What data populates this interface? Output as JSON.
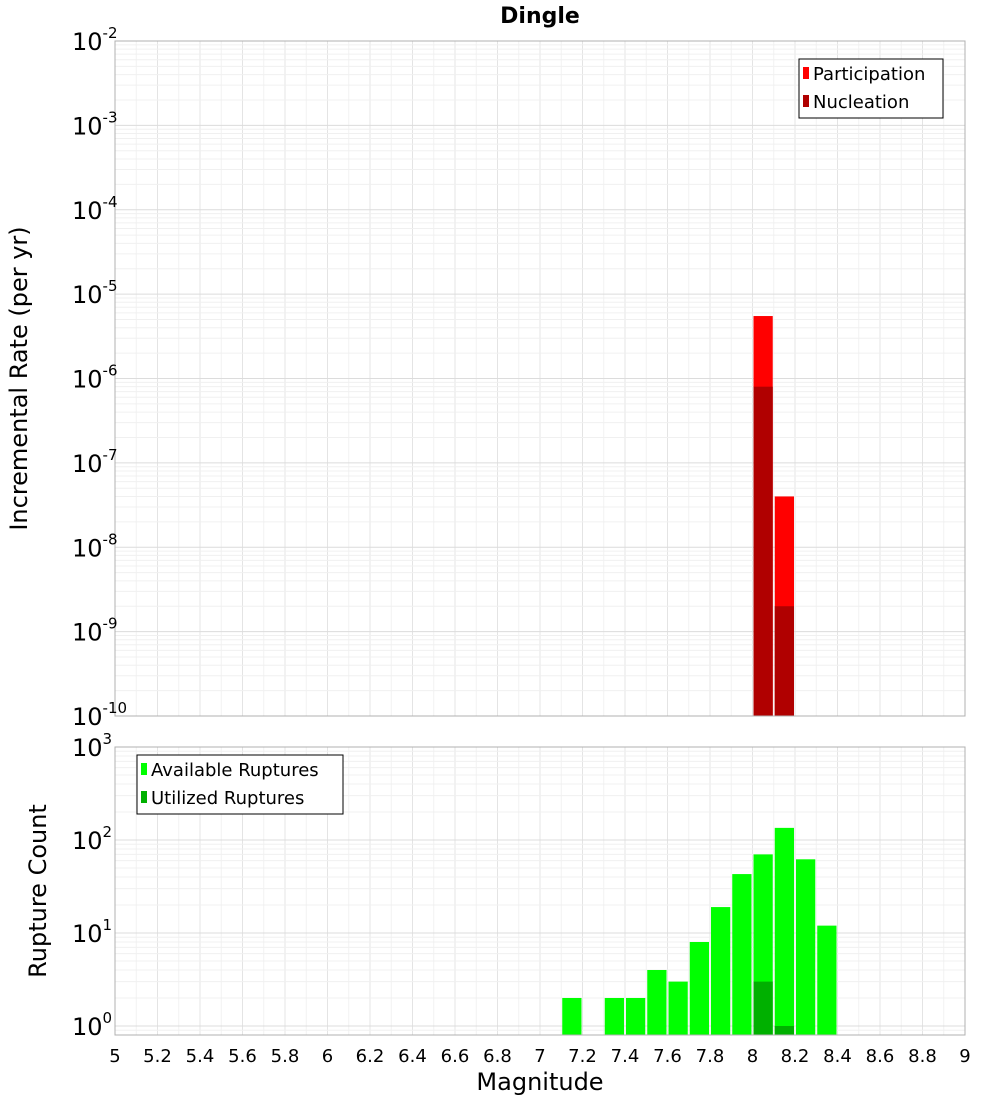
{
  "chart_data": [
    {
      "type": "bar",
      "title": "Dingle",
      "ylabel": "Incremental Rate (per yr)",
      "xlabel": "",
      "y_scale": "log",
      "ylim": [
        1e-10,
        0.01
      ],
      "xlim": [
        5,
        9
      ],
      "y_tick_exponents": [
        -10,
        -9,
        -8,
        -7,
        -6,
        -5,
        -4,
        -3,
        -2
      ],
      "bin_width": 0.1,
      "grid": true,
      "legend_position": "top-right",
      "series": [
        {
          "name": "Participation",
          "color": "#ff0000",
          "x": [
            8.05,
            8.15
          ],
          "values": [
            5.5e-06,
            4e-08
          ]
        },
        {
          "name": "Nucleation",
          "color": "#b00000",
          "x": [
            8.05,
            8.15
          ],
          "values": [
            8e-07,
            2e-09
          ]
        }
      ]
    },
    {
      "type": "bar",
      "title": "",
      "ylabel": "Rupture Count",
      "xlabel": "Magnitude",
      "y_scale": "log",
      "ylim": [
        0.8,
        1000
      ],
      "xlim": [
        5,
        9
      ],
      "y_tick_exponents": [
        0,
        1,
        2,
        3
      ],
      "x_ticks": [
        "5",
        "5.2",
        "5.4",
        "5.6",
        "5.8",
        "6",
        "6.2",
        "6.4",
        "6.6",
        "6.8",
        "7",
        "7.2",
        "7.4",
        "7.6",
        "7.8",
        "8",
        "8.2",
        "8.4",
        "8.6",
        "8.8",
        "9"
      ],
      "bin_width": 0.1,
      "grid": true,
      "legend_position": "top-left",
      "series": [
        {
          "name": "Available Ruptures",
          "color": "#00ff00",
          "x": [
            7.15,
            7.35,
            7.45,
            7.55,
            7.65,
            7.75,
            7.85,
            7.95,
            8.05,
            8.15,
            8.25,
            8.35
          ],
          "values": [
            2,
            2,
            2,
            4,
            3,
            8,
            19,
            43,
            70,
            135,
            62,
            12
          ]
        },
        {
          "name": "Utilized Ruptures",
          "color": "#00b000",
          "x": [
            8.05,
            8.15
          ],
          "values": [
            3,
            1
          ]
        }
      ]
    }
  ]
}
